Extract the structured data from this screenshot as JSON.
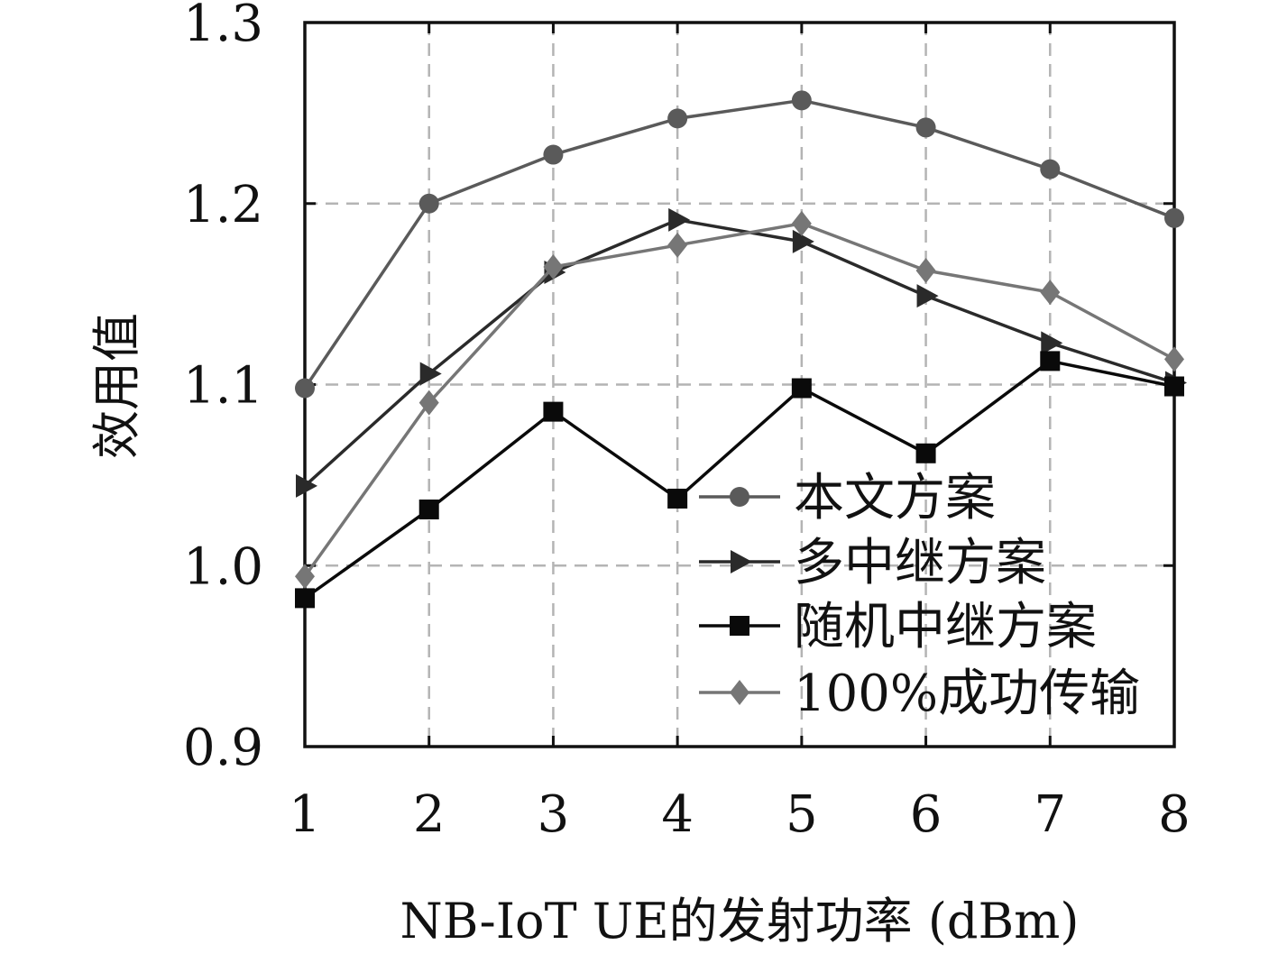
{
  "chart_data": {
    "type": "line",
    "title": "",
    "xlabel": "NB-IoT UE的发射功率 (dBm)",
    "ylabel": "效用值",
    "x": [
      1,
      2,
      3,
      4,
      5,
      6,
      7,
      8
    ],
    "xticks": [
      "1",
      "2",
      "3",
      "4",
      "5",
      "6",
      "7",
      "8"
    ],
    "xlim": [
      1,
      8
    ],
    "ylim": [
      0.9,
      1.3
    ],
    "yticks": [
      "0.9",
      "1.0",
      "1.1",
      "1.2",
      "1.3"
    ],
    "yticks_values": [
      0.9,
      1.0,
      1.1,
      1.2,
      1.3
    ],
    "grid": true,
    "legend_position": "lower-right",
    "series": [
      {
        "name": "本文方案",
        "marker": "circle",
        "color": "#5a5a5a",
        "values": [
          1.098,
          1.2,
          1.227,
          1.247,
          1.257,
          1.242,
          1.219,
          1.192
        ]
      },
      {
        "name": "多中继方案",
        "marker": "triangle-right",
        "color": "#2a2a2a",
        "values": [
          1.044,
          1.106,
          1.162,
          1.191,
          1.179,
          1.149,
          1.123,
          1.101
        ]
      },
      {
        "name": "随机中继方案",
        "marker": "square",
        "color": "#0a0a0a",
        "values": [
          0.982,
          1.031,
          1.085,
          1.037,
          1.098,
          1.062,
          1.113,
          1.099
        ]
      },
      {
        "name": "100%成功传输",
        "marker": "diamond",
        "color": "#767676",
        "values": [
          0.994,
          1.09,
          1.165,
          1.177,
          1.189,
          1.163,
          1.151,
          1.114
        ]
      }
    ]
  }
}
